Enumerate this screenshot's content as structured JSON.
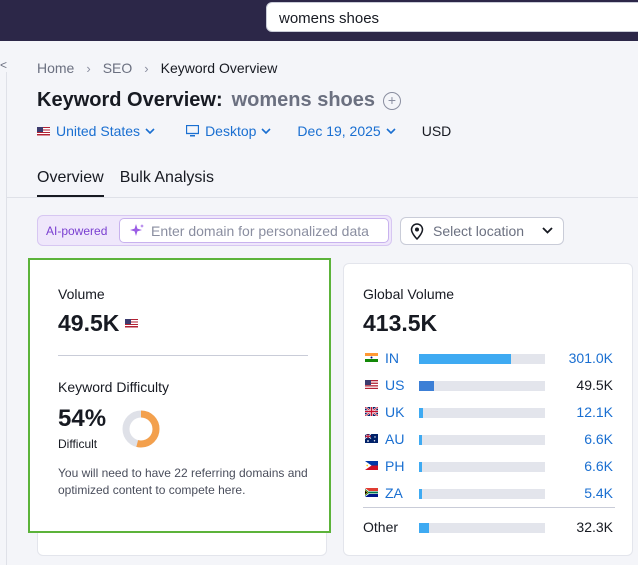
{
  "search": {
    "value": "womens shoes"
  },
  "left_edge_chevron": "<",
  "breadcrumb": {
    "home": "Home",
    "seo": "SEO",
    "current": "Keyword Overview"
  },
  "page_title": {
    "prefix": "Keyword Overview:",
    "keyword": "womens shoes"
  },
  "filters": {
    "country": "United States",
    "device": "Desktop",
    "date": "Dec 19, 2025",
    "currency": "USD"
  },
  "tabs": [
    {
      "label": "Overview"
    },
    {
      "label": "Bulk Analysis"
    }
  ],
  "ai": {
    "label": "AI-powered",
    "placeholder": "Enter domain for personalized data"
  },
  "location": {
    "placeholder": "Select location"
  },
  "volume": {
    "label": "Volume",
    "value": "49.5K"
  },
  "keyword_difficulty": {
    "label": "Keyword Difficulty",
    "value": "54%",
    "level": "Difficult",
    "percent": 54,
    "note": "You will need to have 22 referring domains and optimized content to compete here."
  },
  "global_volume": {
    "label": "Global Volume",
    "value": "413.5K",
    "countries": [
      {
        "code": "IN",
        "value": "301.0K",
        "share": 0.73,
        "flag": "india-flag",
        "link": true
      },
      {
        "code": "US",
        "value": "49.5K",
        "share": 0.12,
        "flag": "us-flag",
        "link": false
      },
      {
        "code": "UK",
        "value": "12.1K",
        "share": 0.03,
        "flag": "uk-flag",
        "link": true
      },
      {
        "code": "AU",
        "value": "6.6K",
        "share": 0.016,
        "flag": "australia-flag",
        "link": true
      },
      {
        "code": "PH",
        "value": "6.6K",
        "share": 0.016,
        "flag": "philippines-flag",
        "link": true
      },
      {
        "code": "ZA",
        "value": "5.4K",
        "share": 0.013,
        "flag": "south-africa-flag",
        "link": true
      }
    ],
    "other": {
      "label": "Other",
      "value": "32.3K",
      "share": 0.08
    }
  },
  "colors": {
    "accent_link": "#1a6fd1",
    "bar_fill": "#3eaaf2",
    "bar_fill_us": "#3c7fd6",
    "kd_orange": "#f3a04d",
    "highlight_green": "#5cb33a",
    "topbar": "#2c2748"
  }
}
